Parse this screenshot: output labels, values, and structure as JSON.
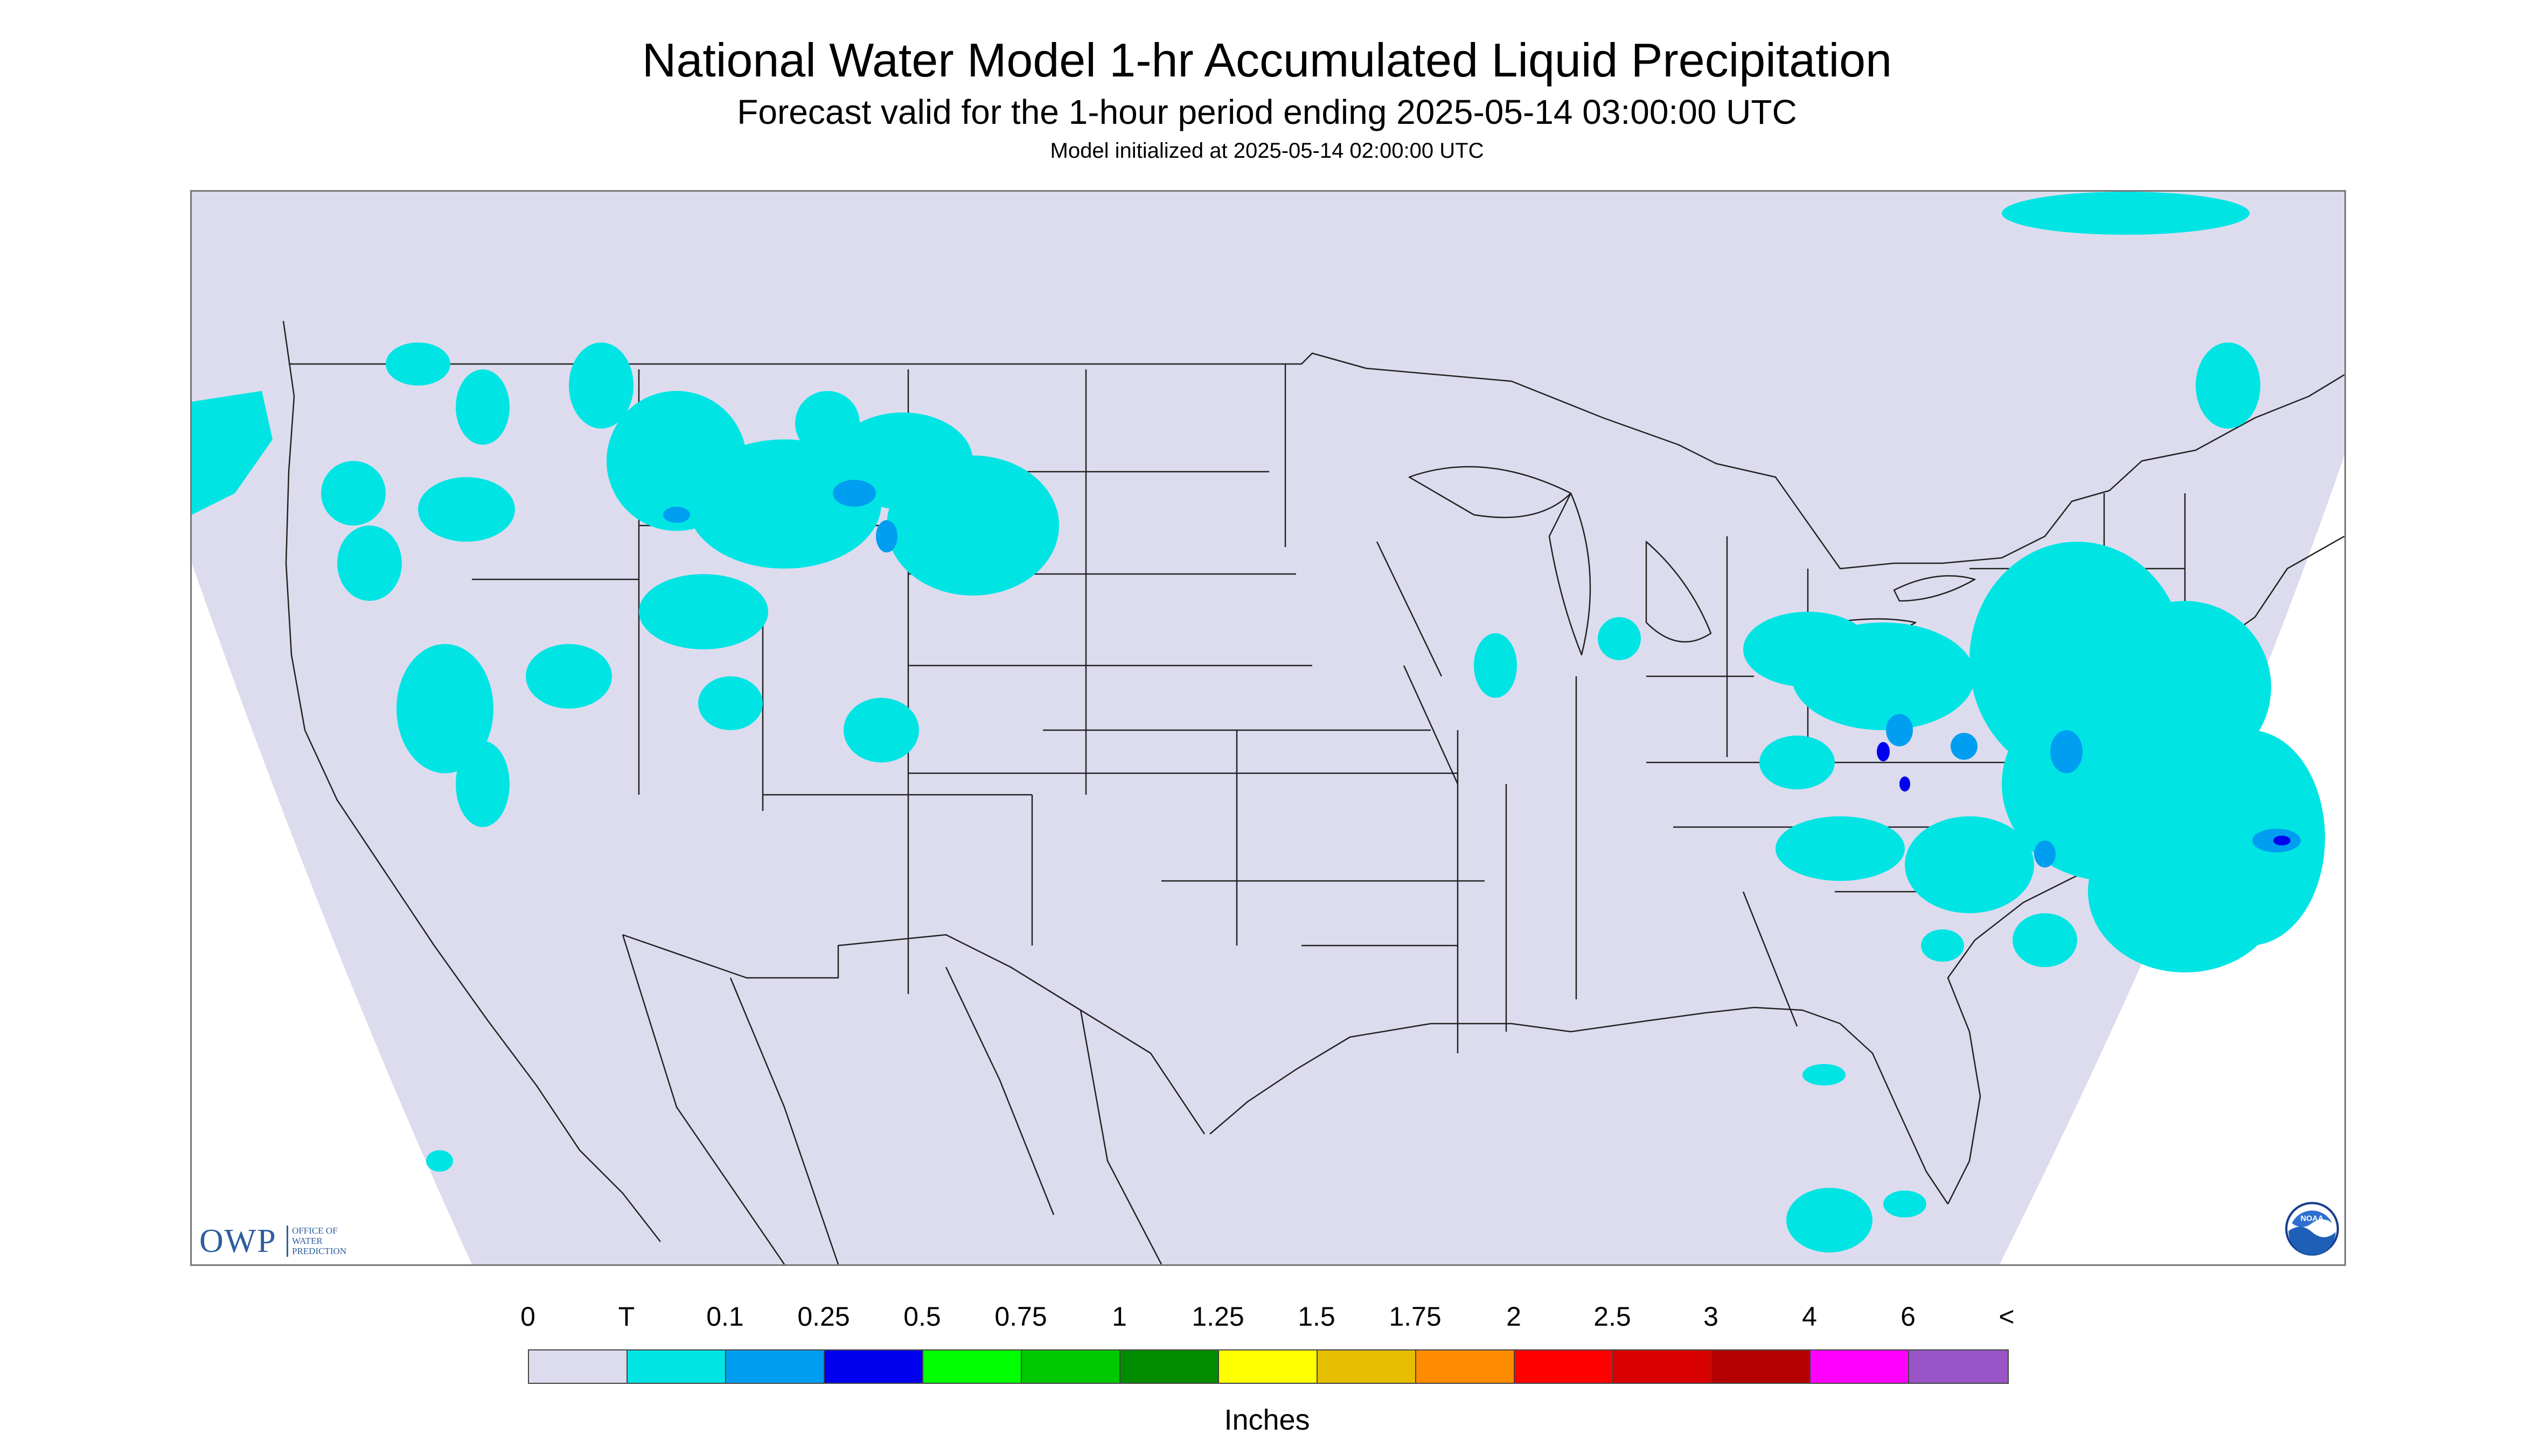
{
  "title": "National Water Model 1-hr Accumulated Liquid Precipitation",
  "subtitle": "Forecast valid for the 1-hour period ending 2025-05-14 03:00:00 UTC",
  "model_init": "Model initialized at 2025-05-14 02:00:00 UTC",
  "colors": {
    "background_domain": "#dcdcee",
    "outside_domain": "#ffffff",
    "boundary_lines": "#222222",
    "trace": "#00e4e4",
    "light": "#009ef0",
    "moderate": "#0000ee"
  },
  "legend": {
    "units": "Inches",
    "labels": [
      "0",
      "T",
      "0.1",
      "0.25",
      "0.5",
      "0.75",
      "1",
      "1.25",
      "1.5",
      "1.75",
      "2",
      "2.5",
      "3",
      "4",
      "6",
      "<"
    ],
    "bins": [
      {
        "color": "#dcdcee"
      },
      {
        "color": "#00e4e4"
      },
      {
        "color": "#009ef0"
      },
      {
        "color": "#0000ee"
      },
      {
        "color": "#00ff00"
      },
      {
        "color": "#00c800"
      },
      {
        "color": "#008c00"
      },
      {
        "color": "#ffff00"
      },
      {
        "color": "#e6be00"
      },
      {
        "color": "#ff8c00"
      },
      {
        "color": "#ff0000"
      },
      {
        "color": "#d80000"
      },
      {
        "color": "#b40000"
      },
      {
        "color": "#ff00ff"
      },
      {
        "color": "#9955c8"
      }
    ]
  },
  "logos": {
    "owp_letters": "OWP",
    "owp_sub": "OFFICE OF\nWATER\nPREDICTION",
    "noaa_text": "NOAA"
  }
}
